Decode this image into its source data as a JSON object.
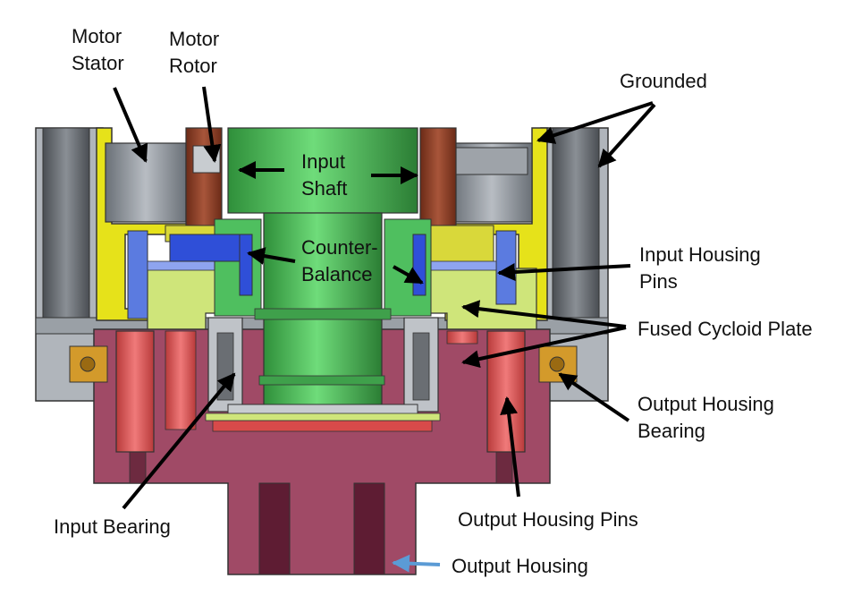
{
  "labels": {
    "motor_stator": [
      "Motor",
      "Stator"
    ],
    "motor_rotor": [
      "Motor",
      "Rotor"
    ],
    "grounded": "Grounded",
    "input_shaft": [
      "Input",
      "Shaft"
    ],
    "counter_balance": [
      "Counter-",
      "Balance"
    ],
    "input_housing_pins": [
      "Input Housing",
      "Pins"
    ],
    "fused_cycloid_plate": "Fused Cycloid Plate",
    "output_housing_bearing": [
      "Output Housing",
      "Bearing"
    ],
    "input_bearing": "Input Bearing",
    "output_housing_pins": "Output Housing Pins",
    "output_housing": "Output Housing"
  },
  "colors": {
    "housing_gray": "#8e949b",
    "housing_dark": "#5b6066",
    "yellow": "#e6e21a",
    "lime": "#cfe57a",
    "green": "#4fbf5f",
    "blue": "#2f4fd8",
    "rotor_brown": "#8a3a22",
    "output_maroon": "#a04a66",
    "pin_red": "#e25b5b",
    "bearing_orange": "#d39a2b",
    "arrow_black": "#000000",
    "arrow_blue": "#5b9bd5"
  }
}
